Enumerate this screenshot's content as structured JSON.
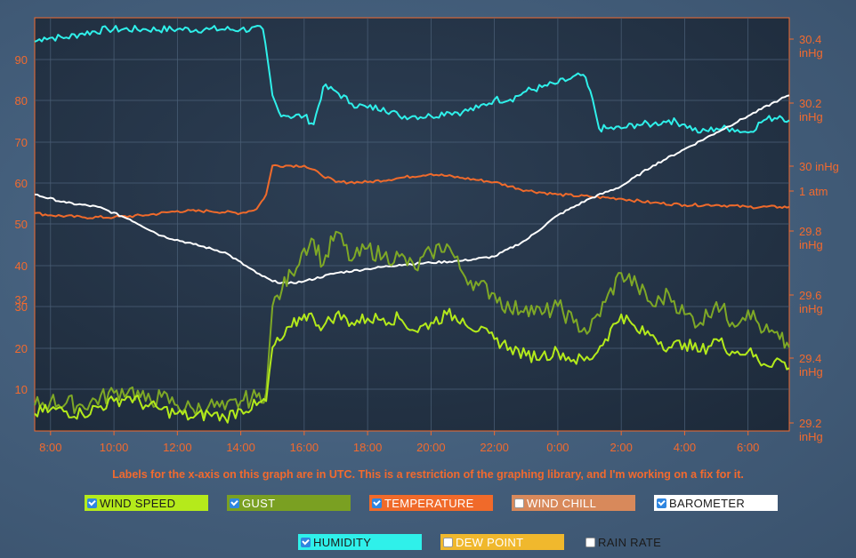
{
  "chart_data": {
    "type": "line",
    "x_ticks": [
      "8:00",
      "10:00",
      "12:00",
      "14:00",
      "16:00",
      "18:00",
      "20:00",
      "22:00",
      "0:00",
      "2:00",
      "4:00",
      "6:00"
    ],
    "left_axis_ticks": [
      "90",
      "80",
      "70",
      "60",
      "50",
      "40",
      "32",
      "30",
      "20",
      "10"
    ],
    "right_axis_ticks": [
      {
        "value": "30.4",
        "unit": "inHg"
      },
      {
        "value": "30.2",
        "unit": "inHg"
      },
      {
        "value": "30 inHg",
        "unit": ""
      },
      {
        "value": "1 atm",
        "unit": ""
      },
      {
        "value": "29.8",
        "unit": "inHg"
      },
      {
        "value": "29.6",
        "unit": "inHg"
      },
      {
        "value": "29.4",
        "unit": "inHg"
      },
      {
        "value": "29.2",
        "unit": "inHg"
      }
    ],
    "x_range_hours": [
      7.5,
      31.3
    ],
    "series": [
      {
        "name": "HUMIDITY",
        "color": "#2ff0ea",
        "x": [
          7.5,
          7.8,
          8.5,
          9,
          9.8,
          11,
          12,
          13,
          14,
          14.7,
          15,
          15.2,
          15.5,
          16,
          16.3,
          16.6,
          17,
          17.5,
          18,
          18.5,
          19,
          19.5,
          20,
          20.5,
          21,
          21.5,
          22,
          22.5,
          23,
          23.5,
          24,
          24.4,
          24.8,
          25.1,
          25.3,
          25.6,
          26,
          26.5,
          27,
          27.5,
          28,
          28.5,
          29,
          29.5,
          30,
          30.5,
          31,
          31.3
        ],
        "y": [
          94,
          95,
          95,
          96,
          97,
          97,
          97,
          97,
          97,
          97,
          81,
          77,
          76,
          76,
          74,
          83,
          82,
          79,
          78,
          78,
          76,
          76,
          76,
          77,
          77,
          78,
          80,
          80,
          82,
          83,
          84,
          85,
          86,
          80,
          73,
          73,
          73,
          74,
          74,
          75,
          74,
          72,
          73,
          73,
          72,
          75,
          76,
          75
        ]
      },
      {
        "name": "TEMPERATURE",
        "color": "#ef6a2b",
        "x": [
          7.5,
          8,
          9,
          10,
          11,
          12,
          13,
          14,
          14.5,
          14.8,
          15,
          15.5,
          16,
          16.5,
          17,
          18,
          19,
          20,
          21,
          22,
          23,
          24,
          25,
          26,
          27,
          28,
          29,
          30,
          31,
          31.3
        ],
        "y": [
          52.5,
          52,
          51.5,
          51.5,
          52,
          53,
          53,
          52.5,
          53.5,
          57,
          64,
          64,
          64,
          62,
          60,
          60,
          61,
          62,
          61,
          60,
          58,
          57,
          56.5,
          56,
          55,
          54.5,
          54.5,
          54,
          54,
          54
        ]
      },
      {
        "name": "BAROMETER",
        "color": "#ffffff",
        "x": [
          7.5,
          8.5,
          9.5,
          10.5,
          11.5,
          12.5,
          13.5,
          14.5,
          15,
          15.5,
          16,
          17,
          18,
          19,
          20,
          21,
          22,
          23,
          24,
          25,
          26,
          27,
          28,
          29,
          30,
          31,
          31.3
        ],
        "y": [
          57,
          55,
          54,
          51,
          47,
          45,
          43,
          38,
          36,
          35.5,
          36,
          38,
          39,
          40,
          40.5,
          41,
          42,
          46,
          52,
          56,
          59,
          64,
          68,
          72,
          76,
          80,
          81
        ]
      },
      {
        "name": "GUST",
        "color": "#7ea826",
        "x": [
          7.5,
          8,
          9,
          10,
          10.5,
          11,
          11.5,
          12,
          12.5,
          13,
          13.5,
          14,
          14.5,
          14.8,
          15,
          15.3,
          15.6,
          16,
          16.3,
          16.6,
          17,
          17.5,
          18,
          18.5,
          19,
          19.5,
          20,
          20.5,
          21,
          21.5,
          22,
          22.5,
          23,
          23.5,
          24,
          24.5,
          25,
          25.5,
          26,
          26.5,
          27,
          27.5,
          28,
          28.5,
          29,
          29.5,
          30,
          30.5,
          31,
          31.3
        ],
        "y": [
          6,
          7,
          6,
          9,
          10,
          7,
          8,
          6,
          5,
          6,
          5,
          7,
          8,
          9,
          30,
          34,
          38,
          44,
          46,
          40,
          48,
          41,
          44,
          42,
          42,
          39,
          43,
          45,
          38,
          35,
          33,
          29,
          30,
          28,
          30,
          26,
          24,
          31,
          38,
          35,
          30,
          33,
          28,
          26,
          31,
          26,
          29,
          24,
          22,
          20
        ]
      },
      {
        "name": "WIND SPEED",
        "color": "#b3ea1b",
        "x": [
          7.5,
          8,
          9,
          10,
          10.5,
          11,
          11.5,
          12,
          12.5,
          13,
          13.5,
          14,
          14.5,
          14.8,
          15,
          15.3,
          15.6,
          16,
          16.3,
          16.6,
          17,
          17.5,
          18,
          18.5,
          19,
          19.5,
          20,
          20.5,
          21,
          21.5,
          22,
          22.5,
          23,
          23.5,
          24,
          24.5,
          25,
          25.5,
          26,
          26.5,
          27,
          27.5,
          28,
          28.5,
          29,
          29.5,
          30,
          30.5,
          31,
          31.3
        ],
        "y": [
          4,
          5,
          4,
          7,
          8,
          6,
          5,
          4,
          3,
          4,
          3,
          5,
          6,
          7,
          20,
          22,
          25,
          28,
          27,
          25,
          28,
          26,
          27,
          27,
          27,
          24,
          26,
          28,
          27,
          24,
          22,
          20,
          18,
          18,
          19,
          17,
          17,
          22,
          28,
          24,
          23,
          20,
          21,
          19,
          22,
          19,
          19,
          16,
          17,
          15
        ]
      }
    ]
  },
  "note": "Labels for the x-axis on this graph are in UTC. This is a restriction of the graphing library, and I'm working on a fix for it.",
  "legend": [
    {
      "label": "WIND SPEED",
      "checked": true,
      "bg": "#b5ea1b",
      "fg": "#1b1b1b"
    },
    {
      "label": "GUST",
      "checked": true,
      "bg": "#7aa022",
      "fg": "#ffffff"
    },
    {
      "label": "TEMPERATURE",
      "checked": true,
      "bg": "#f06a2a",
      "fg": "#ffffff"
    },
    {
      "label": "WIND CHILL",
      "checked": false,
      "bg": "#d8895b",
      "fg": "#ffffff"
    },
    {
      "label": "BAROMETER",
      "checked": true,
      "bg": "#ffffff",
      "fg": "#1b1b1b"
    },
    {
      "label": "HUMIDITY",
      "checked": true,
      "bg": "#2ff0ea",
      "fg": "#1b1b1b"
    },
    {
      "label": "DEW POINT",
      "checked": false,
      "bg": "#f0b82d",
      "fg": "#ffffff"
    },
    {
      "label": "RAIN RATE",
      "checked": false,
      "bg": "transparent",
      "fg": "#1b1b1b"
    }
  ]
}
